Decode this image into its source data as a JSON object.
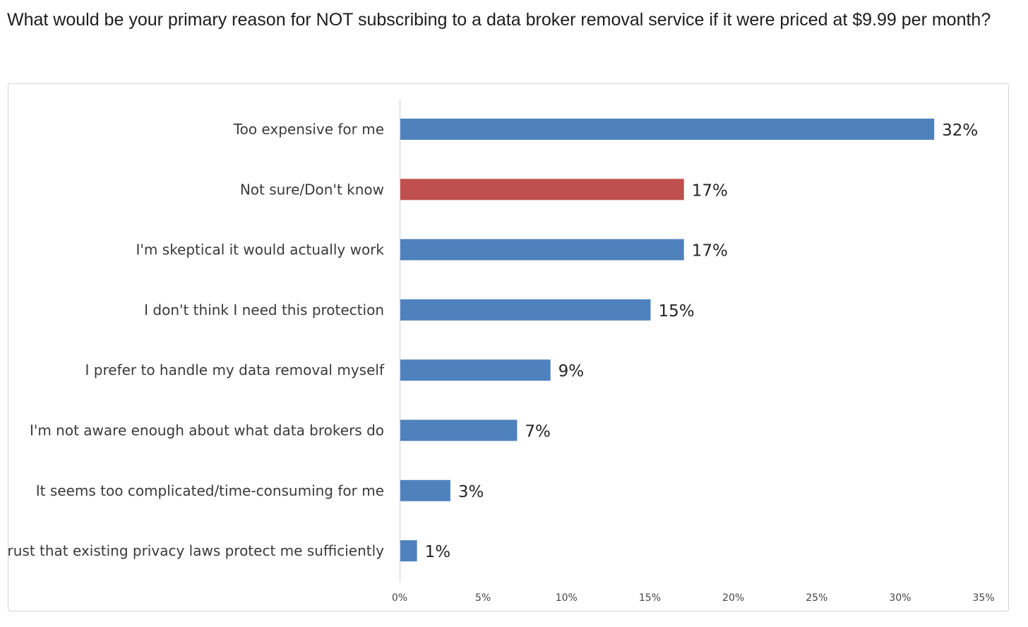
{
  "question": "What would be your primary reason for NOT subscribing to a data broker removal service if it were priced at $9.99 per month?",
  "chart_data": {
    "type": "bar",
    "orientation": "horizontal",
    "title": "",
    "xlabel": "",
    "ylabel": "",
    "xlim": [
      0,
      35
    ],
    "x_ticks": [
      0,
      5,
      10,
      15,
      20,
      25,
      30,
      35
    ],
    "x_tick_labels": [
      "0%",
      "5%",
      "10%",
      "15%",
      "20%",
      "25%",
      "30%",
      "35%"
    ],
    "grid": false,
    "legend": "none",
    "categories": [
      "Too expensive for me",
      "Not sure/Don't know",
      "I'm skeptical it would actually work",
      "I don't think I need this protection",
      "I prefer to handle my data removal myself",
      "I'm not aware enough about what data brokers do",
      "It seems too complicated/time-consuming for me",
      "I trust that existing privacy laws protect me sufficiently"
    ],
    "values": [
      32,
      17,
      17,
      15,
      9,
      7,
      3,
      1
    ],
    "value_labels": [
      "32%",
      "17%",
      "17%",
      "15%",
      "9%",
      "7%",
      "3%",
      "1%"
    ],
    "bar_colors": [
      "#4f81bd",
      "#c0504d",
      "#4f81bd",
      "#4f81bd",
      "#4f81bd",
      "#4f81bd",
      "#4f81bd",
      "#4f81bd"
    ],
    "axis_color": "#d9d9d9"
  }
}
